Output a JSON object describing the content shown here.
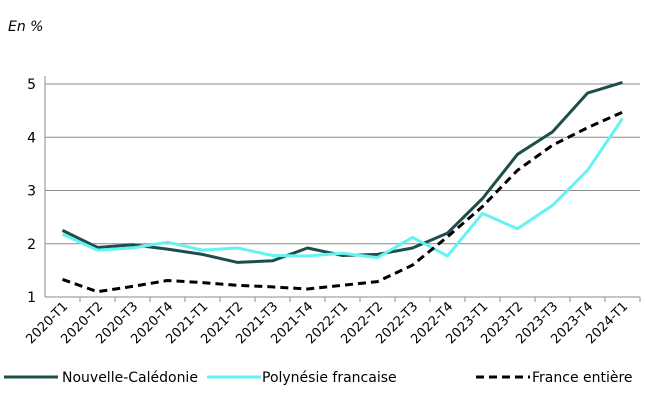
{
  "chart_data": {
    "type": "line",
    "unit_label": "En %",
    "categories": [
      "2020-T1",
      "2020-T2",
      "2020-T3",
      "2020-T4",
      "2021-T1",
      "2021-T2",
      "2021-T3",
      "2021-T4",
      "2022-T1",
      "2022-T2",
      "2022-T3",
      "2022-T4",
      "2023-T1",
      "2023-T2",
      "2023-T3",
      "2023-T4",
      "2024-T1"
    ],
    "ylim": [
      1,
      5
    ],
    "yticks": [
      1,
      2,
      3,
      4,
      5
    ],
    "grid": true,
    "legend_position": "bottom",
    "series": [
      {
        "name": "Nouvelle-Calédonie",
        "color": "#1c4f4c",
        "style": "solid",
        "values": [
          2.25,
          1.93,
          1.98,
          1.9,
          1.8,
          1.65,
          1.68,
          1.92,
          1.78,
          1.8,
          1.92,
          2.2,
          2.85,
          3.68,
          4.1,
          4.83,
          5.03
        ]
      },
      {
        "name": "Polynésie francaise",
        "color": "#66f2f2",
        "style": "solid",
        "values": [
          2.18,
          1.88,
          1.92,
          2.03,
          1.88,
          1.92,
          1.78,
          1.77,
          1.82,
          1.74,
          2.12,
          1.77,
          2.57,
          2.28,
          2.72,
          3.38,
          4.35
        ]
      },
      {
        "name": "France entière",
        "color": "#000000",
        "style": "dashed",
        "values": [
          1.33,
          1.1,
          1.2,
          1.31,
          1.27,
          1.22,
          1.19,
          1.15,
          1.22,
          1.29,
          1.6,
          2.13,
          2.7,
          3.38,
          3.85,
          4.18,
          4.47
        ]
      }
    ]
  }
}
